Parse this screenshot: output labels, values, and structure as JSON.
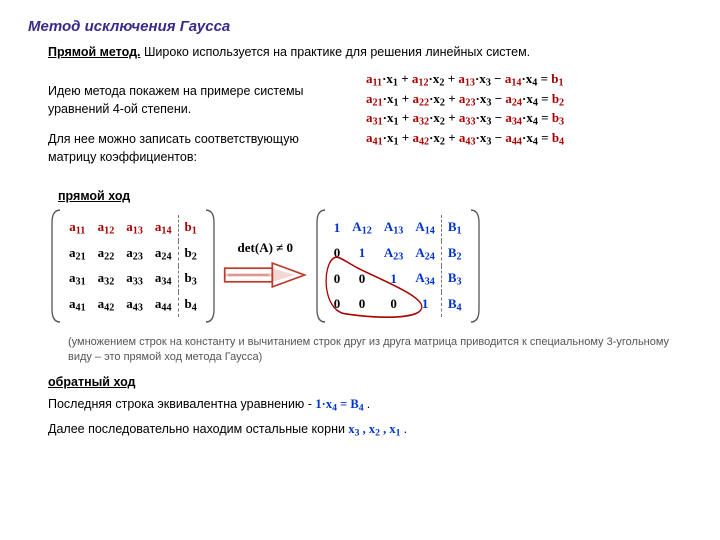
{
  "title": "Метод исключения Гаусса",
  "intro_b": "Прямой метод.",
  "intro_rest": " Широко используется на практике для решения линейных систем.",
  "para1": "Идею метода покажем на примере системы уравнений 4-ой степени.",
  "para2": "Для нее можно записать соответствующую матрицу коэффициентов:",
  "section_forward": "прямой ход",
  "det_label": "det(A) ≠ 0",
  "eqs": [
    {
      "a": [
        "a",
        "a",
        "a",
        "a"
      ],
      "sub": [
        "11",
        "12",
        "13",
        "14"
      ],
      "b": "b",
      "bsub": "1"
    },
    {
      "a": [
        "a",
        "a",
        "a",
        "a"
      ],
      "sub": [
        "21",
        "22",
        "23",
        "24"
      ],
      "b": "b",
      "bsub": "2"
    },
    {
      "a": [
        "a",
        "a",
        "a",
        "a"
      ],
      "sub": [
        "31",
        "32",
        "33",
        "34"
      ],
      "b": "b",
      "bsub": "3"
    },
    {
      "a": [
        "a",
        "a",
        "a",
        "a"
      ],
      "sub": [
        "41",
        "42",
        "43",
        "44"
      ],
      "b": "b",
      "bsub": "4"
    }
  ],
  "matL": {
    "rows": [
      [
        "a11",
        "a12",
        "a13",
        "a14",
        "b1"
      ],
      [
        "a21",
        "a22",
        "a23",
        "a24",
        "b2"
      ],
      [
        "a31",
        "a32",
        "a33",
        "a34",
        "b3"
      ],
      [
        "a41",
        "a42",
        "a43",
        "a44",
        "b4"
      ]
    ],
    "row0_red": true
  },
  "matR": {
    "rows": [
      [
        "1",
        "A12",
        "A13",
        "A14",
        "B1"
      ],
      [
        "0",
        "1",
        "A23",
        "A24",
        "B2"
      ],
      [
        "0",
        "0",
        "1",
        "A34",
        "B3"
      ],
      [
        "0",
        "0",
        "0",
        "1",
        "B4"
      ]
    ]
  },
  "note_text": "(умножением строк на константу и вычитанием строк друг из друга матрица приводится к специальному 3-угольному виду – это прямой ход метода Гаусса)",
  "section_back": "обратный ход",
  "back1_a": "Последняя строка эквивалентна уравнению - ",
  "back1_eq_l": "1·x",
  "back1_eq_l_sub": "4",
  "back1_eq_mid": " = ",
  "back1_eq_r": "B",
  "back1_eq_r_sub": "4",
  "back2_a": "Далее последовательно находим остальные корни ",
  "back2_x3": "x3",
  "back2_x2": "x2",
  "back2_x1": "x1",
  "colors": {
    "title": "#3a2a8a",
    "red": "#a80000",
    "blue": "#0033cc",
    "arrow": "#c0392b",
    "bracket": "#555555"
  }
}
